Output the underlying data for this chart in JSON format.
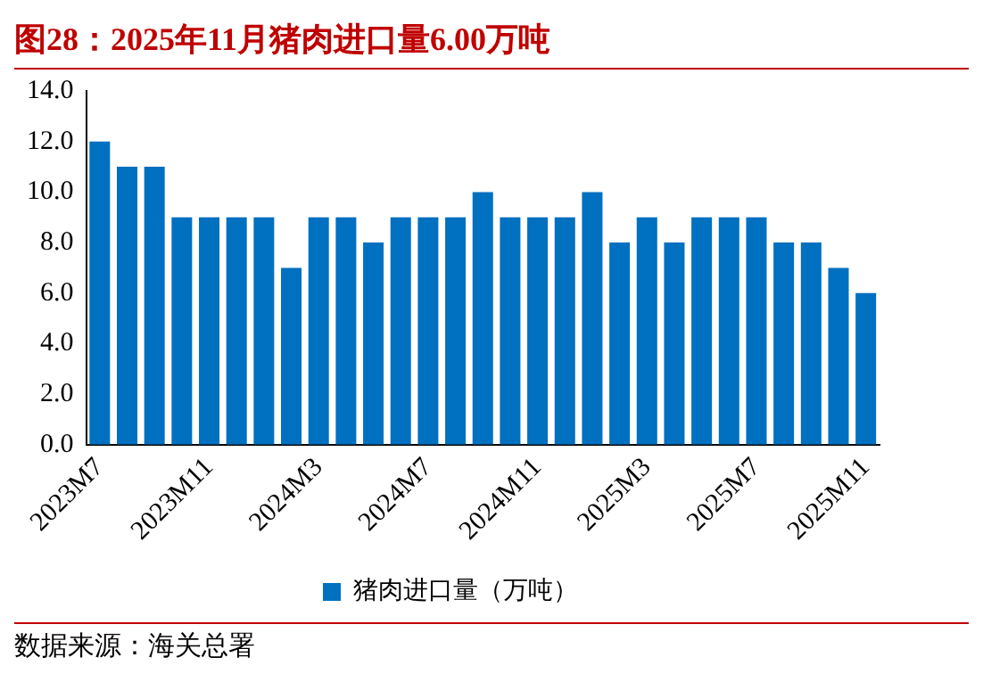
{
  "chart_data": {
    "type": "bar",
    "title": "图28：2025年11月猪肉进口量6.00万吨",
    "categories": [
      "2023M7",
      null,
      null,
      null,
      "2023M11",
      null,
      null,
      null,
      "2024M3",
      null,
      null,
      null,
      "2024M7",
      null,
      null,
      null,
      "2024M11",
      null,
      null,
      null,
      "2025M3",
      null,
      null,
      null,
      "2025M7",
      null,
      null,
      null,
      "2025M11"
    ],
    "series": [
      {
        "name": "猪肉进口量（万吨）",
        "color": "#0070c0",
        "values": [
          12,
          11,
          11,
          9,
          9,
          9,
          9,
          7,
          9,
          9,
          8,
          9,
          9,
          9,
          10,
          9,
          9,
          9,
          10,
          8,
          9,
          8,
          9,
          9,
          9,
          8,
          8,
          7,
          6
        ]
      }
    ],
    "ylim": [
      0,
      14
    ],
    "yticks": [
      {
        "value": 0,
        "label": "0.0"
      },
      {
        "value": 2,
        "label": "2.0"
      },
      {
        "value": 4,
        "label": "4.0"
      },
      {
        "value": 6,
        "label": "6.0"
      },
      {
        "value": 8,
        "label": "8.0"
      },
      {
        "value": 10,
        "label": "10.0"
      },
      {
        "value": 12,
        "label": "12.0"
      },
      {
        "value": 14,
        "label": "14.0"
      }
    ],
    "grid": false,
    "legend": "bottom",
    "annotations": [
      "数据来源：海关总署"
    ]
  }
}
